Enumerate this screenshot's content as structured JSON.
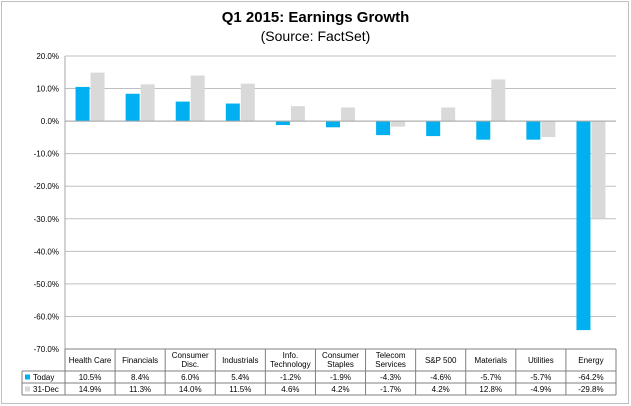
{
  "chart_data": {
    "type": "bar",
    "title": "Q1 2015: Earnings Growth",
    "subtitle": "(Source: FactSet)",
    "categories": [
      "Health Care",
      "Financials",
      "Consumer Disc.",
      "Industrials",
      "Info. Technology",
      "Consumer Staples",
      "Telecom Services",
      "S&P 500",
      "Materials",
      "Utilities",
      "Energy"
    ],
    "category_lines": [
      [
        "Health Care"
      ],
      [
        "Financials"
      ],
      [
        "Consumer",
        "Disc."
      ],
      [
        "Industrials"
      ],
      [
        "Info.",
        "Technology"
      ],
      [
        "Consumer",
        "Staples"
      ],
      [
        "Telecom",
        "Services"
      ],
      [
        "S&P 500"
      ],
      [
        "Materials"
      ],
      [
        "Utilities"
      ],
      [
        "Energy"
      ]
    ],
    "series": [
      {
        "name": "Today",
        "color": "#00b0f0",
        "values": [
          10.5,
          8.4,
          6.0,
          5.4,
          -1.2,
          -1.9,
          -4.3,
          -4.6,
          -5.7,
          -5.7,
          -64.2
        ],
        "labels": [
          "10.5%",
          "8.4%",
          "6.0%",
          "5.4%",
          "-1.2%",
          "-1.9%",
          "-4.3%",
          "-4.6%",
          "-5.7%",
          "-5.7%",
          "-64.2%"
        ]
      },
      {
        "name": "31-Dec",
        "color": "#d9d9d9",
        "values": [
          14.9,
          11.3,
          14.0,
          11.5,
          4.6,
          4.2,
          -1.7,
          4.2,
          12.8,
          -4.9,
          -29.8
        ],
        "labels": [
          "14.9%",
          "11.3%",
          "14.0%",
          "11.5%",
          "4.6%",
          "4.2%",
          "-1.7%",
          "4.2%",
          "12.8%",
          "-4.9%",
          "-29.8%"
        ]
      }
    ],
    "ylim": [
      -70,
      20
    ],
    "yticks": [
      20,
      10,
      0,
      -10,
      -20,
      -30,
      -40,
      -50,
      -60,
      -70
    ],
    "ytick_labels": [
      "20.0%",
      "10.0%",
      "0.0%",
      "-10.0%",
      "-20.0%",
      "-30.0%",
      "-40.0%",
      "-50.0%",
      "-60.0%",
      "-70.0%"
    ],
    "grid": true,
    "legend": "data-table"
  }
}
